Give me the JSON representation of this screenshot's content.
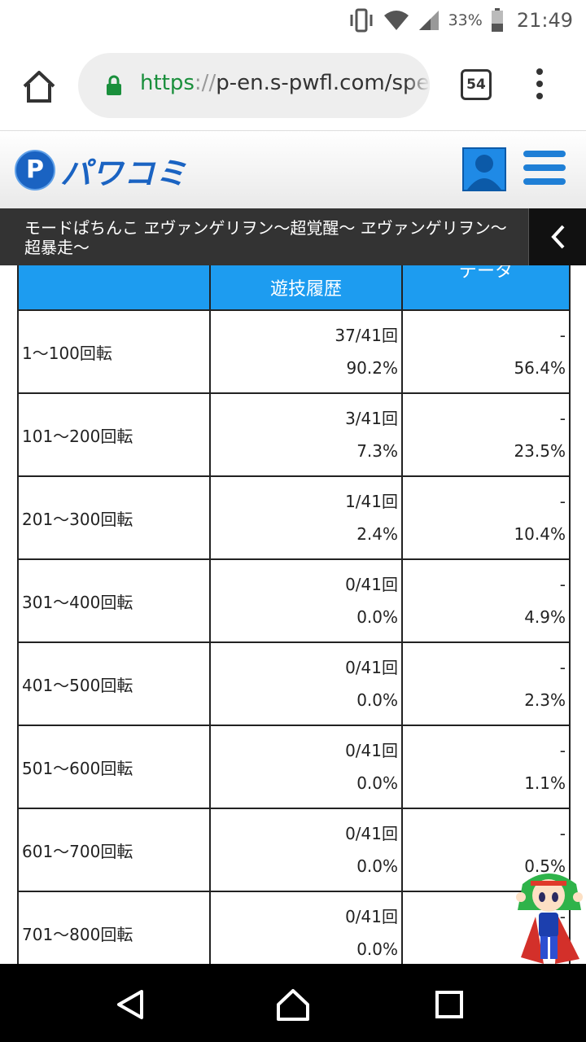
{
  "status_bar": {
    "battery_percent": "33%",
    "time": "21:49",
    "icons": [
      "vibrate-icon",
      "wifi-icon",
      "signal-icon",
      "battery-icon"
    ]
  },
  "browser": {
    "url_scheme": "https",
    "url_sep": "://",
    "url_rest": "p-en.s-pwfl.com/spec",
    "tab_count": "54"
  },
  "site": {
    "logo_letter": "P",
    "logo_text": "パワコミ"
  },
  "page": {
    "title": "モードぱちんこ ヱヴァンゲリヲン〜超覚醒〜 ヱヴァンゲリヲン〜超暴走〜"
  },
  "table": {
    "headers": [
      "",
      "遊技履歴",
      "データ"
    ],
    "rows": [
      {
        "range": "1〜100回転",
        "count": "37/41回",
        "percent": "90.2%",
        "data_top": "-",
        "data_pct": "56.4%"
      },
      {
        "range": "101〜200回転",
        "count": "3/41回",
        "percent": "7.3%",
        "data_top": "-",
        "data_pct": "23.5%"
      },
      {
        "range": "201〜300回転",
        "count": "1/41回",
        "percent": "2.4%",
        "data_top": "-",
        "data_pct": "10.4%"
      },
      {
        "range": "301〜400回転",
        "count": "0/41回",
        "percent": "0.0%",
        "data_top": "-",
        "data_pct": "4.9%"
      },
      {
        "range": "401〜500回転",
        "count": "0/41回",
        "percent": "0.0%",
        "data_top": "-",
        "data_pct": "2.3%"
      },
      {
        "range": "501〜600回転",
        "count": "0/41回",
        "percent": "0.0%",
        "data_top": "-",
        "data_pct": "1.1%"
      },
      {
        "range": "601〜700回転",
        "count": "0/41回",
        "percent": "0.0%",
        "data_top": "-",
        "data_pct": "0.5%"
      },
      {
        "range": "701〜800回転",
        "count": "0/41回",
        "percent": "0.0%",
        "data_top": "-",
        "data_pct": "%"
      }
    ]
  },
  "colors": {
    "header_blue": "#1d9cf0",
    "brand_blue": "#1a63c2",
    "title_bar": "#333333"
  }
}
